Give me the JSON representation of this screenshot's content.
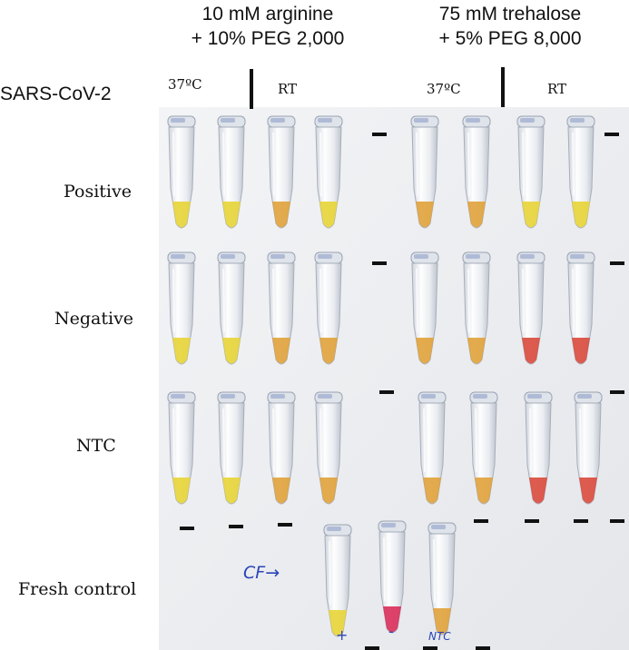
{
  "header": {
    "group_left": {
      "line1": "10 mM arginine",
      "line2": "+ 10% PEG 2,000"
    },
    "group_right": {
      "line1": "75 mM trehalose",
      "line2": "+ 5% PEG 8,000"
    },
    "virus_label": "SARS-CoV-2",
    "temp_left_37": "37ºC",
    "temp_left_rt": "RT",
    "temp_right_37": "37ºC",
    "temp_right_rt": "RT"
  },
  "rows": [
    {
      "label": "Positive"
    },
    {
      "label": "Negative"
    },
    {
      "label": "NTC"
    },
    {
      "label": "Fresh control"
    }
  ],
  "handwriting": {
    "cf": "CF→",
    "plus": "+",
    "minus": "-",
    "ntc": "NTC"
  },
  "colors": {
    "yellow": "#e8d437",
    "orange": "#e0a23a",
    "red": "#d94a3c",
    "magenta": "#d92d5a",
    "board": "#eeeff1",
    "ink": "#2a45b8"
  }
}
